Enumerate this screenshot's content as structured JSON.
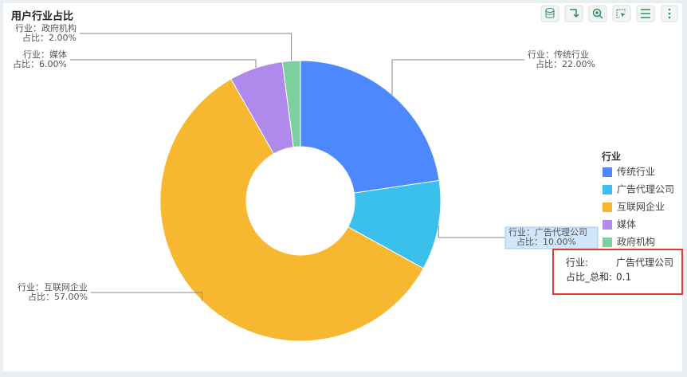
{
  "chart_data": {
    "type": "donut",
    "title": "用户行业占比",
    "categories": [
      "传统行业",
      "广告代理公司",
      "互联网企业",
      "媒体",
      "政府机构"
    ],
    "values": [
      22,
      10,
      57,
      6,
      2
    ],
    "value_labels": [
      "22.00%",
      "10.00%",
      "57.00%",
      "6.00%",
      "2.00%"
    ],
    "colors": [
      "#4d88ff",
      "#3bc0ed",
      "#f7b731",
      "#b089ed",
      "#7dcfa0"
    ],
    "label_category_prefix": "行业：",
    "label_value_prefix": "占比：",
    "legend_title": "行业",
    "legend": "right",
    "tooltip": {
      "fields": [
        {
          "key": "行业:",
          "value": "广告代理公司"
        },
        {
          "key": "占比_总和:",
          "value": "0.1"
        }
      ]
    }
  }
}
